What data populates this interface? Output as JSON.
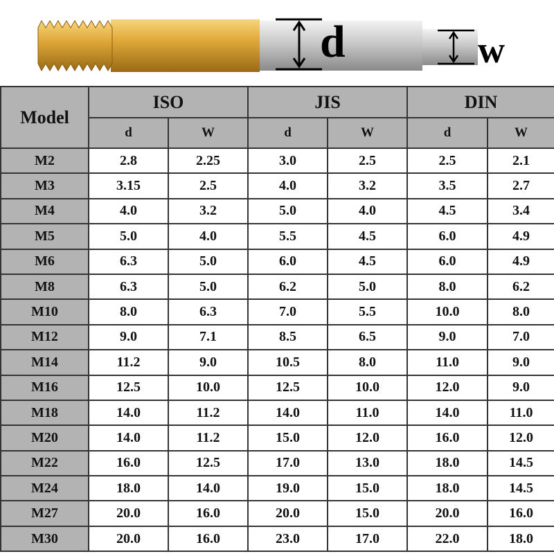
{
  "figure": {
    "d_label": "d",
    "w_label": "w"
  },
  "table": {
    "header": {
      "model": "Model",
      "groups": [
        "ISO",
        "JIS",
        "DIN"
      ],
      "subheaders": [
        "d",
        "W",
        "d",
        "W",
        "d",
        "W"
      ]
    },
    "rows": [
      [
        "M2",
        "2.8",
        "2.25",
        "3.0",
        "2.5",
        "2.5",
        "2.1"
      ],
      [
        "M3",
        "3.15",
        "2.5",
        "4.0",
        "3.2",
        "3.5",
        "2.7"
      ],
      [
        "M4",
        "4.0",
        "3.2",
        "5.0",
        "4.0",
        "4.5",
        "3.4"
      ],
      [
        "M5",
        "5.0",
        "4.0",
        "5.5",
        "4.5",
        "6.0",
        "4.9"
      ],
      [
        "M6",
        "6.3",
        "5.0",
        "6.0",
        "4.5",
        "6.0",
        "4.9"
      ],
      [
        "M8",
        "6.3",
        "5.0",
        "6.2",
        "5.0",
        "8.0",
        "6.2"
      ],
      [
        "M10",
        "8.0",
        "6.3",
        "7.0",
        "5.5",
        "10.0",
        "8.0"
      ],
      [
        "M12",
        "9.0",
        "7.1",
        "8.5",
        "6.5",
        "9.0",
        "7.0"
      ],
      [
        "M14",
        "11.2",
        "9.0",
        "10.5",
        "8.0",
        "11.0",
        "9.0"
      ],
      [
        "M16",
        "12.5",
        "10.0",
        "12.5",
        "10.0",
        "12.0",
        "9.0"
      ],
      [
        "M18",
        "14.0",
        "11.2",
        "14.0",
        "11.0",
        "14.0",
        "11.0"
      ],
      [
        "M20",
        "14.0",
        "11.2",
        "15.0",
        "12.0",
        "16.0",
        "12.0"
      ],
      [
        "M22",
        "16.0",
        "12.5",
        "17.0",
        "13.0",
        "18.0",
        "14.5"
      ],
      [
        "M24",
        "18.0",
        "14.0",
        "19.0",
        "15.0",
        "18.0",
        "14.5"
      ],
      [
        "M27",
        "20.0",
        "16.0",
        "20.0",
        "15.0",
        "20.0",
        "16.0"
      ],
      [
        "M30",
        "20.0",
        "16.0",
        "23.0",
        "17.0",
        "22.0",
        "18.0"
      ]
    ]
  }
}
